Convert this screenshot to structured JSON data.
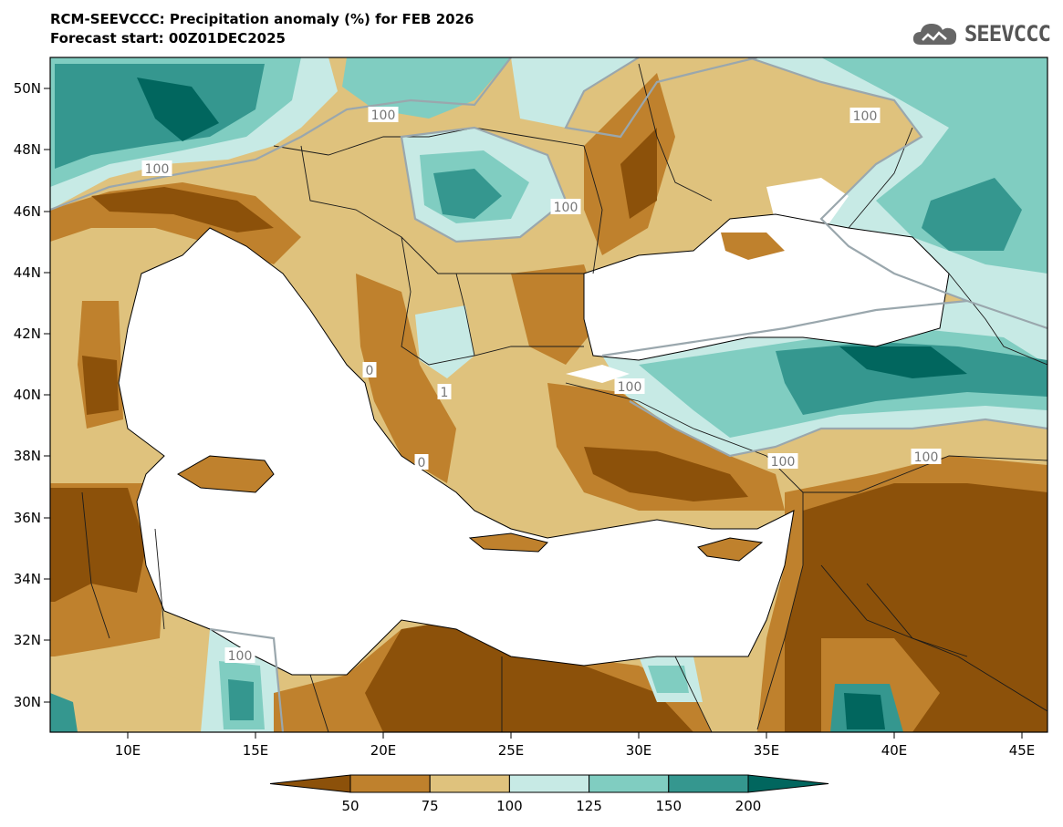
{
  "header": {
    "title": "RCM-SEEVCCC: Precipitation anomaly (%) for FEB 2026",
    "subtitle": "Forecast start: 00Z01DEC2025",
    "logo_text": "SEEVCCC",
    "logo_icon": "cloud-icon"
  },
  "map": {
    "lon_ticks": [
      "10E",
      "15E",
      "20E",
      "25E",
      "30E",
      "35E",
      "40E",
      "45E"
    ],
    "lat_ticks": [
      "50N",
      "48N",
      "46N",
      "44N",
      "42N",
      "40N",
      "38N",
      "36N",
      "34N",
      "32N",
      "30N"
    ],
    "contour_labels": [
      {
        "text": "100"
      },
      {
        "text": "100"
      },
      {
        "text": "100"
      },
      {
        "text": "100"
      },
      {
        "text": "100"
      },
      {
        "text": "100"
      },
      {
        "text": "100"
      },
      {
        "text": "100"
      },
      {
        "text": "0"
      },
      {
        "text": "1"
      },
      {
        "text": "0"
      }
    ]
  },
  "colorbar": {
    "labels": [
      "50",
      "75",
      "100",
      "125",
      "150",
      "200"
    ],
    "colors": [
      "#8c510a",
      "#bf812d",
      "#dfc27d",
      "#c7eae5",
      "#80cdc1",
      "#35978f",
      "#01665e"
    ]
  },
  "palette": {
    "sea": "#ffffff",
    "border": "#1a1a1a",
    "contour_label_bg": "#ffffff",
    "contour_label_fg": "#777777"
  }
}
